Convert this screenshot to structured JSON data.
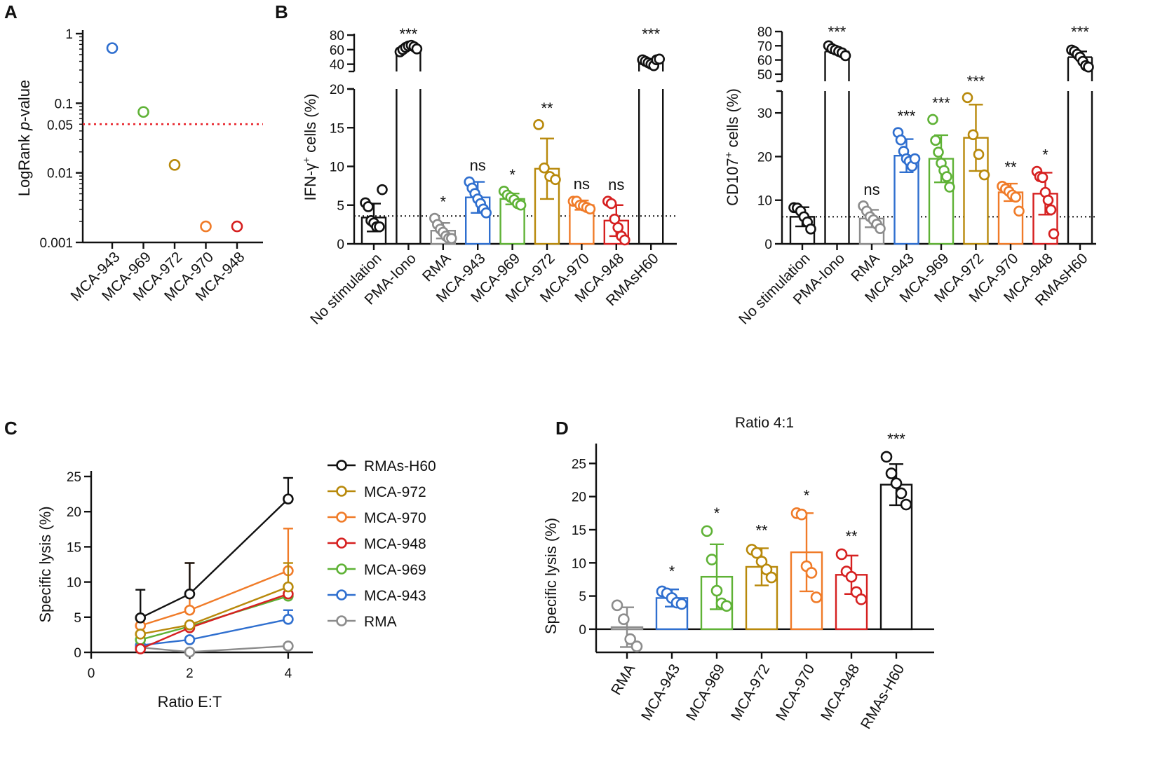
{
  "colors": {
    "black": "#111111",
    "gray": "#8c8c8c",
    "blue": "#2f6fcf",
    "green": "#5fb236",
    "gold": "#b8890b",
    "orange": "#f07b28",
    "red": "#d62020",
    "ref_red": "#e8242b"
  },
  "panel_labels": {
    "A": "A",
    "B": "B",
    "C": "C",
    "D": "D"
  },
  "chart_data": [
    {
      "id": "A",
      "type": "scatter",
      "title": "",
      "xlabel": "",
      "ylabel": "LogRank p-value",
      "ylabel_main": "LogRank ",
      "ylabel_italic": "p",
      "ylabel_rest": "-value",
      "yscale": "log",
      "ylim": [
        0.001,
        1
      ],
      "yticks": [
        {
          "v": 1,
          "label": "1"
        },
        {
          "v": 0.1,
          "label": "0.1"
        },
        {
          "v": 0.01,
          "label": "0.01"
        },
        {
          "v": 0.001,
          "label": "0.001"
        }
      ],
      "reference": {
        "value": 0.05,
        "label": "0.05",
        "color": "#e8242b"
      },
      "categories": [
        "MCA-943",
        "MCA-969",
        "MCA-972",
        "MCA-970",
        "MCA-948"
      ],
      "values": [
        0.62,
        0.075,
        0.013,
        0.0017,
        0.0017
      ],
      "colors": [
        "#2f6fcf",
        "#5fb236",
        "#b8890b",
        "#f07b28",
        "#d62020"
      ]
    },
    {
      "id": "B1",
      "type": "bar",
      "ylabel_main": "IFN-γ",
      "ylabel_sup": "+",
      "ylabel_rest": " cells (%)",
      "ylabel": "IFN-γ+ cells (%)",
      "lower_ylim": [
        0,
        20
      ],
      "lower_ticks": [
        0,
        5,
        10,
        15,
        20
      ],
      "upper_ylim": [
        30,
        82
      ],
      "upper_ticks": [
        40,
        60,
        80
      ],
      "baseline": 3.6,
      "categories": [
        "No stimulation",
        "PMA-Iono",
        "RMA",
        "MCA-943",
        "MCA-969",
        "MCA-972",
        "MCA-970",
        "MCA-948",
        "RMAsH60"
      ],
      "means": [
        3.4,
        62,
        1.7,
        6.0,
        5.8,
        9.7,
        5.0,
        3.0,
        44
      ],
      "sd": [
        1.8,
        3,
        1.0,
        2.0,
        0.7,
        3.9,
        0.6,
        2.0,
        3
      ],
      "points": [
        [
          5.3,
          4.8,
          3.0,
          2.7,
          2.2,
          2.2,
          7.0
        ],
        [
          57,
          60,
          63,
          65,
          66,
          64,
          61
        ],
        [
          3.3,
          2.5,
          1.9,
          1.5,
          1.0,
          0.7,
          0.7
        ],
        [
          8.0,
          7.2,
          6.5,
          5.8,
          5.2,
          4.5,
          4.0
        ],
        [
          6.8,
          6.3,
          6.0,
          5.7,
          5.2,
          5.0
        ],
        [
          15.4,
          9.8,
          8.7,
          8.3
        ],
        [
          5.5,
          5.5,
          5.0,
          4.9,
          4.7,
          4.5
        ],
        [
          5.5,
          5.2,
          3.2,
          2.1,
          1.0,
          0.5
        ],
        [
          46,
          44,
          42,
          40,
          38,
          46,
          47
        ]
      ],
      "colors": [
        "#111111",
        "#111111",
        "#8c8c8c",
        "#2f6fcf",
        "#5fb236",
        "#b8890b",
        "#f07b28",
        "#d62020",
        "#111111"
      ],
      "significance": [
        "",
        "***",
        "*",
        "ns",
        "*",
        "**",
        "ns",
        "ns",
        "***"
      ]
    },
    {
      "id": "B2",
      "type": "bar",
      "ylabel_main": "CD107",
      "ylabel_sup": "+",
      "ylabel_rest": " cells (%)",
      "ylabel": "CD107+ cells (%)",
      "lower_ylim": [
        0,
        35
      ],
      "lower_ticks": [
        0,
        10,
        20,
        30
      ],
      "upper_ylim": [
        45,
        80
      ],
      "upper_ticks": [
        50,
        60,
        70,
        80
      ],
      "baseline": 6.2,
      "categories": [
        "No stimulation",
        "PMA-Iono",
        "RMA",
        "MCA-943",
        "MCA-969",
        "MCA-972",
        "MCA-970",
        "MCA-948",
        "RMAsH60"
      ],
      "means": [
        6.2,
        66,
        5.8,
        20.2,
        19.5,
        24.3,
        11.8,
        11.5,
        62
      ],
      "sd": [
        2.2,
        2,
        2.0,
        3.8,
        5.4,
        7.6,
        2.0,
        4.8,
        4
      ],
      "points": [
        [
          8.3,
          8.2,
          7.5,
          6.2,
          5.0,
          3.4
        ],
        [
          70,
          68,
          67,
          66,
          65,
          63
        ],
        [
          8.7,
          7.5,
          6.2,
          5.5,
          4.5,
          3.5
        ],
        [
          25.5,
          23.8,
          21.2,
          19.5,
          18.9,
          17.8,
          19.5
        ],
        [
          28.5,
          23.7,
          21.0,
          18.5,
          16.8,
          15.4,
          13.0
        ],
        [
          33.5,
          25.0,
          20.5,
          15.8
        ],
        [
          13.2,
          12.6,
          12.0,
          11.2,
          10.7,
          7.5
        ],
        [
          16.6,
          15.4,
          15.2,
          11.8,
          10.0,
          7.8,
          2.3
        ],
        [
          67,
          66,
          64,
          62,
          59,
          56,
          55
        ]
      ],
      "colors": [
        "#111111",
        "#111111",
        "#8c8c8c",
        "#2f6fcf",
        "#5fb236",
        "#b8890b",
        "#f07b28",
        "#d62020",
        "#111111"
      ],
      "significance": [
        "",
        "***",
        "ns",
        "***",
        "***",
        "***",
        "**",
        "*",
        "***"
      ]
    },
    {
      "id": "C",
      "type": "line",
      "xlabel": "Ratio E:T",
      "ylabel": "Specific lysis (%)",
      "xlim": [
        0,
        4.5
      ],
      "xticks": [
        0,
        2,
        4
      ],
      "ylim": [
        0,
        25
      ],
      "yticks": [
        0,
        5,
        10,
        15,
        20,
        25
      ],
      "x": [
        1,
        2,
        4
      ],
      "series": [
        {
          "name": "RMAs-H60",
          "color": "#111111",
          "values": [
            4.9,
            8.3,
            21.8
          ],
          "err": [
            4.0,
            4.4,
            3.0
          ]
        },
        {
          "name": "MCA-972",
          "color": "#b8890b",
          "values": [
            2.6,
            3.9,
            9.3
          ],
          "err": [
            0,
            0,
            3.4
          ]
        },
        {
          "name": "MCA-970",
          "color": "#f07b28",
          "values": [
            3.8,
            6.0,
            11.6
          ],
          "err": [
            0,
            6.7,
            6.0
          ]
        },
        {
          "name": "MCA-948",
          "color": "#d62020",
          "values": [
            0.5,
            3.5,
            8.3
          ],
          "err": [
            0,
            0,
            0
          ]
        },
        {
          "name": "MCA-969",
          "color": "#5fb236",
          "values": [
            1.8,
            3.7,
            8.0
          ],
          "err": [
            0,
            0,
            0
          ]
        },
        {
          "name": "MCA-943",
          "color": "#2f6fcf",
          "values": [
            1.0,
            1.8,
            4.7
          ],
          "err": [
            0,
            0,
            1.3
          ]
        },
        {
          "name": "RMA",
          "color": "#8c8c8c",
          "values": [
            0.7,
            0.05,
            0.9
          ],
          "err": [
            0,
            0,
            0
          ]
        }
      ]
    },
    {
      "id": "D",
      "type": "bar",
      "title": "Ratio 4:1",
      "ylabel": "Specific lysis (%)",
      "ylim": [
        -3.5,
        28
      ],
      "yticks": [
        0,
        5,
        10,
        15,
        20,
        25
      ],
      "categories": [
        "RMA",
        "MCA-943",
        "MCA-969",
        "MCA-972",
        "MCA-970",
        "MCA-948",
        "RMAs-H60"
      ],
      "means": [
        0.3,
        4.7,
        7.9,
        9.4,
        11.6,
        8.2,
        21.8
      ],
      "sd": [
        3.0,
        1.3,
        4.9,
        2.8,
        5.9,
        2.9,
        3.1
      ],
      "points": [
        [
          3.6,
          1.5,
          -1.5,
          -2.6
        ],
        [
          5.7,
          5.4,
          4.7,
          4.0,
          3.8
        ],
        [
          14.8,
          10.5,
          5.8,
          3.9,
          3.5
        ],
        [
          12.0,
          11.5,
          10.2,
          9.0,
          7.8
        ],
        [
          17.5,
          17.3,
          9.5,
          8.5,
          4.8
        ],
        [
          11.3,
          8.7,
          7.9,
          5.6,
          4.5
        ],
        [
          26.0,
          23.5,
          22.0,
          20.5,
          18.8
        ]
      ],
      "colors": [
        "#8c8c8c",
        "#2f6fcf",
        "#5fb236",
        "#b8890b",
        "#f07b28",
        "#d62020",
        "#111111"
      ],
      "significance": [
        "",
        "*",
        "*",
        "**",
        "*",
        "**",
        "***"
      ]
    }
  ]
}
